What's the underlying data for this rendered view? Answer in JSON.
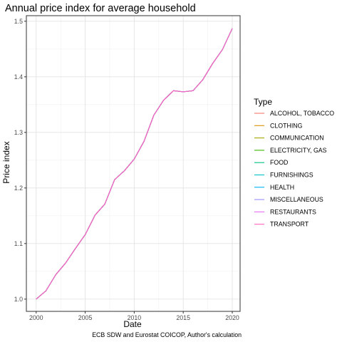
{
  "chart_data": {
    "type": "line",
    "title": "Annual price index for average household",
    "xlabel": "Date",
    "ylabel": "Price index",
    "caption": "ECB SDW and Eurostat COICOP, Author's calculation",
    "xlim": [
      1999.0,
      2020.8
    ],
    "ylim": [
      0.978,
      1.51
    ],
    "x_ticks": [
      2000,
      2005,
      2010,
      2015,
      2020
    ],
    "y_ticks": [
      1.0,
      1.1,
      1.2,
      1.3,
      1.4,
      1.5
    ],
    "y_tick_labels": [
      "1.0",
      "1.1",
      "1.2",
      "1.3",
      "1.4",
      "1.5"
    ],
    "grid": true,
    "legend_title": "Type",
    "legend_position": "right",
    "x": [
      2000,
      2001,
      2002,
      2003,
      2004,
      2005,
      2006,
      2007,
      2008,
      2009,
      2010,
      2011,
      2012,
      2013,
      2014,
      2015,
      2016,
      2017,
      2018,
      2019,
      2020
    ],
    "series": [
      {
        "name": "ALCOHOL, TOBACCO",
        "color": "#F8766D",
        "values": [
          1.0,
          1.015,
          1.044,
          1.065,
          1.091,
          1.116,
          1.151,
          1.171,
          1.215,
          1.231,
          1.252,
          1.284,
          1.331,
          1.358,
          1.375,
          1.373,
          1.375,
          1.395,
          1.424,
          1.449,
          1.487
        ]
      },
      {
        "name": "CLOTHING",
        "color": "#D89000",
        "values": [
          1.0,
          1.015,
          1.044,
          1.065,
          1.091,
          1.116,
          1.151,
          1.171,
          1.215,
          1.231,
          1.252,
          1.284,
          1.331,
          1.358,
          1.375,
          1.373,
          1.375,
          1.395,
          1.424,
          1.449,
          1.487
        ]
      },
      {
        "name": "COMMUNICATION",
        "color": "#A3A500",
        "values": [
          1.0,
          1.015,
          1.044,
          1.065,
          1.091,
          1.116,
          1.151,
          1.171,
          1.215,
          1.231,
          1.252,
          1.284,
          1.331,
          1.358,
          1.375,
          1.373,
          1.375,
          1.395,
          1.424,
          1.449,
          1.487
        ]
      },
      {
        "name": "ELECTRICITY, GAS",
        "color": "#39B600",
        "values": [
          1.0,
          1.015,
          1.044,
          1.065,
          1.091,
          1.116,
          1.151,
          1.171,
          1.215,
          1.231,
          1.252,
          1.284,
          1.331,
          1.358,
          1.375,
          1.373,
          1.375,
          1.395,
          1.424,
          1.449,
          1.487
        ]
      },
      {
        "name": "FOOD",
        "color": "#00BF7D",
        "values": [
          1.0,
          1.015,
          1.044,
          1.065,
          1.091,
          1.116,
          1.151,
          1.171,
          1.215,
          1.231,
          1.252,
          1.284,
          1.331,
          1.358,
          1.375,
          1.373,
          1.375,
          1.395,
          1.424,
          1.449,
          1.487
        ]
      },
      {
        "name": "FURNISHINGS",
        "color": "#00BFC4",
        "values": [
          1.0,
          1.015,
          1.044,
          1.065,
          1.091,
          1.116,
          1.151,
          1.171,
          1.215,
          1.231,
          1.252,
          1.284,
          1.331,
          1.358,
          1.375,
          1.373,
          1.375,
          1.395,
          1.424,
          1.449,
          1.487
        ]
      },
      {
        "name": "HEALTH",
        "color": "#00B0F6",
        "values": [
          1.0,
          1.015,
          1.044,
          1.065,
          1.091,
          1.116,
          1.151,
          1.171,
          1.215,
          1.231,
          1.252,
          1.284,
          1.331,
          1.358,
          1.375,
          1.373,
          1.375,
          1.395,
          1.424,
          1.449,
          1.487
        ]
      },
      {
        "name": "MISCELLANEOUS",
        "color": "#9590FF",
        "values": [
          1.0,
          1.015,
          1.044,
          1.065,
          1.091,
          1.116,
          1.151,
          1.171,
          1.215,
          1.231,
          1.252,
          1.284,
          1.331,
          1.358,
          1.375,
          1.373,
          1.375,
          1.395,
          1.424,
          1.449,
          1.487
        ]
      },
      {
        "name": "RESTAURANTS",
        "color": "#E76BF3",
        "values": [
          1.0,
          1.015,
          1.044,
          1.065,
          1.091,
          1.116,
          1.151,
          1.171,
          1.215,
          1.231,
          1.252,
          1.284,
          1.331,
          1.358,
          1.375,
          1.373,
          1.375,
          1.395,
          1.424,
          1.449,
          1.487
        ]
      },
      {
        "name": "TRANSPORT",
        "color": "#FF62BC",
        "values": [
          1.0,
          1.015,
          1.044,
          1.065,
          1.091,
          1.116,
          1.151,
          1.171,
          1.215,
          1.231,
          1.252,
          1.284,
          1.331,
          1.358,
          1.375,
          1.373,
          1.375,
          1.395,
          1.424,
          1.449,
          1.487
        ]
      }
    ]
  }
}
